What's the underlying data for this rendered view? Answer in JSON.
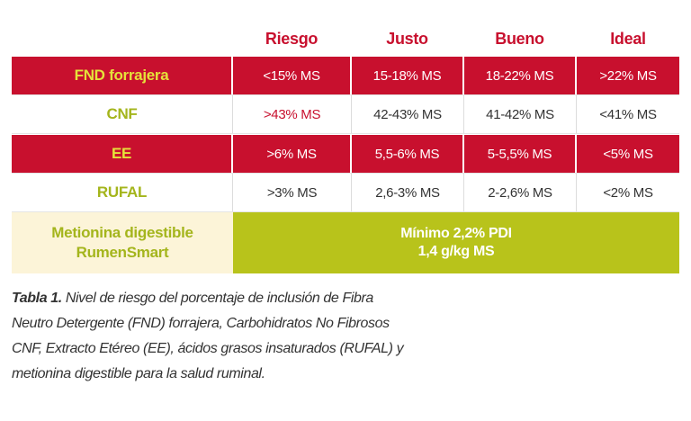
{
  "table": {
    "columns": [
      "",
      "Riesgo",
      "Justo",
      "Bueno",
      "Ideal"
    ],
    "rows": [
      {
        "label": "FND forrajera",
        "values": [
          "<15% MS",
          "15-18% MS",
          "18-22% MS",
          ">22% MS"
        ]
      },
      {
        "label": "CNF",
        "values": [
          ">43% MS",
          "42-43% MS",
          "41-42% MS",
          "<41% MS"
        ]
      },
      {
        "label": "EE",
        "values": [
          ">6% MS",
          "5,5-6% MS",
          "5-5,5% MS",
          "<5% MS"
        ]
      },
      {
        "label": "RUFAL",
        "values": [
          ">3% MS",
          "2,6-3% MS",
          "2-2,6% MS",
          "<2% MS"
        ]
      }
    ],
    "last_row": {
      "label_line1": "Metionina digestible",
      "label_line2": "RumenSmart",
      "value_line1": "Mínimo 2,2% PDI",
      "value_line2": "1,4 g/kg MS"
    }
  },
  "caption": {
    "prefix": "Tabla 1.",
    "line1": " Nivel de riesgo del porcentaje de inclusión de Fibra",
    "line2": "Neutro Detergente (FND) forrajera, Carbohidratos No Fibrosos",
    "line3": "CNF, Extracto Etéreo (EE), ácidos grasos insaturados (RUFAL) y",
    "line4": "metionina digestible para la salud ruminal."
  },
  "colors": {
    "red": "#c8102e",
    "yellow_green": "#b8c31b",
    "label_green": "#a4b51c",
    "cream": "#fcf4d8"
  }
}
